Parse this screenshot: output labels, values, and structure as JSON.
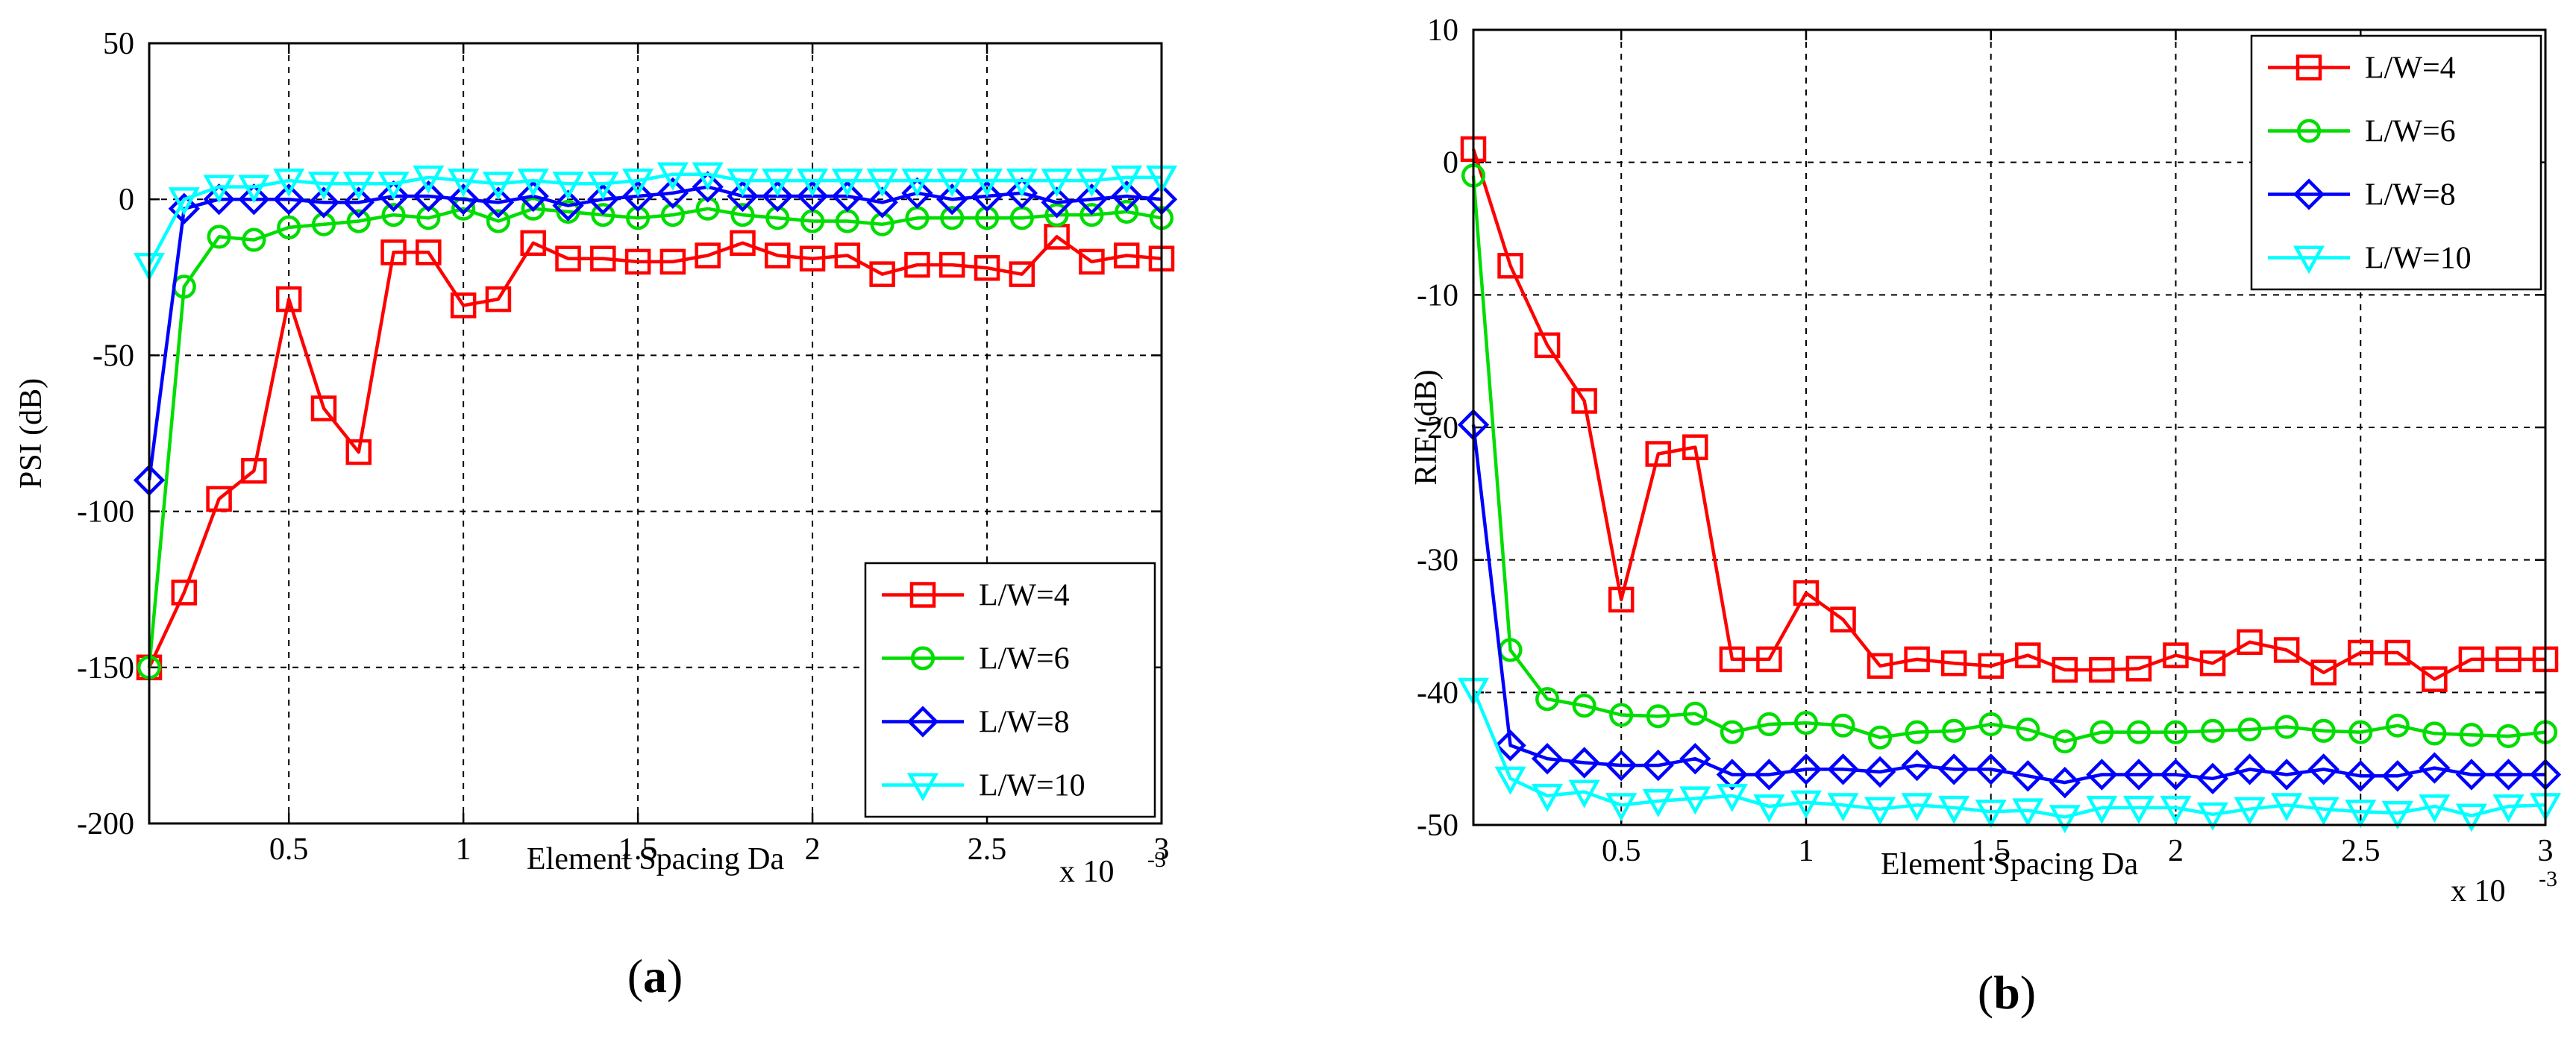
{
  "chart_data": [
    {
      "type": "line",
      "panel_label": {
        "prefix": "(",
        "letter": "a",
        "suffix": ")"
      },
      "xlabel": "Element Spacing Da",
      "ylabel": "PSI (dB)",
      "x_multiplier": {
        "base": "x 10",
        "exponent": "-3"
      },
      "xlim": [
        0.1,
        3.0
      ],
      "ylim": [
        -200,
        50
      ],
      "xticks": [
        0.5,
        1.0,
        1.5,
        2.0,
        2.5,
        3.0
      ],
      "xtick_labels": [
        "0.5",
        "1",
        "1.5",
        "2",
        "2.5",
        "3"
      ],
      "yticks": [
        50,
        0,
        -50,
        -100,
        -150,
        -200
      ],
      "ytick_labels": [
        "50",
        "0",
        "-50",
        "-100",
        "-150",
        "-200"
      ],
      "grid": true,
      "legend_position": "bottom-right",
      "x": [
        0.1,
        0.2,
        0.3,
        0.4,
        0.5,
        0.6,
        0.7,
        0.8,
        0.9,
        1.0,
        1.1,
        1.2,
        1.3,
        1.4,
        1.5,
        1.6,
        1.7,
        1.8,
        1.9,
        2.0,
        2.1,
        2.2,
        2.3,
        2.4,
        2.5,
        2.6,
        2.7,
        2.8,
        2.9,
        3.0
      ],
      "series": [
        {
          "name": "L/W=4",
          "color": "#ff0000",
          "marker": "square",
          "values": [
            -150,
            -126,
            -96,
            -87,
            -32,
            -67,
            -81,
            -17,
            -17,
            -34,
            -32,
            -14,
            -19,
            -19,
            -20,
            -20,
            -18,
            -14,
            -18,
            -19,
            -18,
            -24,
            -21,
            -21,
            -22,
            -24,
            -12,
            -20,
            -18,
            -19
          ]
        },
        {
          "name": "L/W=6",
          "color": "#00dd00",
          "marker": "circle",
          "values": [
            -150,
            -28,
            -12,
            -13,
            -9,
            -8,
            -7,
            -5,
            -6,
            -3,
            -7,
            -3,
            -4,
            -5,
            -6,
            -5,
            -3,
            -5,
            -6,
            -7,
            -7,
            -8,
            -6,
            -6,
            -6,
            -6,
            -5,
            -5,
            -4,
            -6
          ]
        },
        {
          "name": "L/W=8",
          "color": "#0000ff",
          "marker": "diamond",
          "values": [
            -90,
            -3,
            0,
            0,
            0,
            -1,
            -1,
            1,
            1,
            0,
            -1,
            1,
            -2,
            0,
            1,
            2,
            4,
            1,
            1,
            1,
            1,
            -1,
            2,
            0,
            1,
            2,
            -1,
            0,
            1,
            0
          ]
        },
        {
          "name": "L/W=10",
          "color": "#00ffff",
          "marker": "triangle-down",
          "values": [
            -21,
            0,
            4,
            4,
            6,
            5,
            5,
            5,
            7,
            6,
            5,
            6,
            5,
            5,
            6,
            8,
            8,
            6,
            6,
            6,
            6,
            6,
            6,
            6,
            6,
            6,
            6,
            6,
            7,
            7
          ]
        }
      ]
    },
    {
      "type": "line",
      "panel_label": {
        "prefix": "(",
        "letter": "b",
        "suffix": ")"
      },
      "xlabel": "Element Spacing Da",
      "ylabel": "RIE (dB)",
      "x_multiplier": {
        "base": "x 10",
        "exponent": "-3"
      },
      "xlim": [
        0.1,
        3.0
      ],
      "ylim": [
        -50,
        10
      ],
      "xticks": [
        0.5,
        1.0,
        1.5,
        2.0,
        2.5,
        3.0
      ],
      "xtick_labels": [
        "0.5",
        "1",
        "1.5",
        "2",
        "2.5",
        "3"
      ],
      "yticks": [
        10,
        0,
        -10,
        -20,
        -30,
        -40,
        -50
      ],
      "ytick_labels": [
        "10",
        "0",
        "-10",
        "-20",
        "-30",
        "-40",
        "-50"
      ],
      "grid": true,
      "legend_position": "top-right",
      "x": [
        0.1,
        0.2,
        0.3,
        0.4,
        0.5,
        0.6,
        0.7,
        0.8,
        0.9,
        1.0,
        1.1,
        1.2,
        1.3,
        1.4,
        1.5,
        1.6,
        1.7,
        1.8,
        1.9,
        2.0,
        2.1,
        2.2,
        2.3,
        2.4,
        2.5,
        2.6,
        2.7,
        2.8,
        2.9,
        3.0
      ],
      "series": [
        {
          "name": "L/W=4",
          "color": "#ff0000",
          "marker": "square",
          "values": [
            1,
            -7.8,
            -13.8,
            -18,
            -33,
            -22,
            -21.5,
            -37.5,
            -37.5,
            -32.5,
            -34.5,
            -38,
            -37.5,
            -37.8,
            -38,
            -37.2,
            -38.3,
            -38.3,
            -38.2,
            -37.2,
            -37.8,
            -36.2,
            -36.8,
            -38.5,
            -37,
            -37,
            -39,
            -37.5,
            -37.5,
            -37.5
          ]
        },
        {
          "name": "L/W=6",
          "color": "#00dd00",
          "marker": "circle",
          "values": [
            -1,
            -36.8,
            -40.5,
            -41,
            -41.7,
            -41.8,
            -41.6,
            -43,
            -42.4,
            -42.3,
            -42.5,
            -43.4,
            -43,
            -42.9,
            -42.4,
            -42.8,
            -43.7,
            -43,
            -43,
            -43,
            -42.9,
            -42.8,
            -42.6,
            -42.9,
            -43,
            -42.5,
            -43.1,
            -43.2,
            -43.3,
            -43
          ]
        },
        {
          "name": "L/W=8",
          "color": "#0000ff",
          "marker": "diamond",
          "values": [
            -19.8,
            -44,
            -45,
            -45.3,
            -45.5,
            -45.5,
            -45,
            -46.2,
            -46.2,
            -45.8,
            -45.8,
            -46,
            -45.5,
            -45.8,
            -45.8,
            -46.3,
            -46.8,
            -46.2,
            -46.2,
            -46.2,
            -46.5,
            -45.8,
            -46.2,
            -45.8,
            -46.3,
            -46.3,
            -45.7,
            -46.2,
            -46.2,
            -46.2
          ]
        },
        {
          "name": "L/W=10",
          "color": "#00ffff",
          "marker": "triangle-down",
          "values": [
            -39.8,
            -46.5,
            -47.8,
            -47.5,
            -48.5,
            -48.2,
            -48,
            -47.8,
            -48.6,
            -48.3,
            -48.5,
            -48.8,
            -48.5,
            -48.7,
            -49,
            -48.9,
            -49.4,
            -48.7,
            -48.7,
            -48.7,
            -49.2,
            -48.8,
            -48.5,
            -48.8,
            -49,
            -49.1,
            -48.6,
            -49.3,
            -48.6,
            -48.5
          ]
        }
      ]
    }
  ]
}
